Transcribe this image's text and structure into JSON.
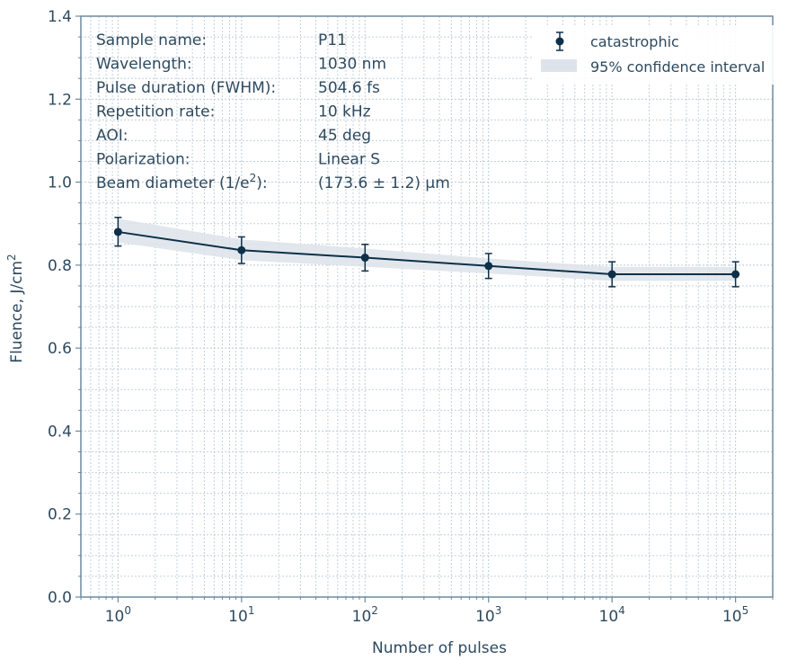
{
  "chart_data": {
    "type": "line",
    "xlabel": "Number of pulses",
    "ylabel": "Fluence, J/cm",
    "ylabel_sup": "2",
    "x_scale": "log",
    "xlim": [
      0.5,
      200000
    ],
    "ylim": [
      0.0,
      1.4
    ],
    "grid": true,
    "legend_position": "top-right",
    "y_ticks": [
      "0.0",
      "0.2",
      "0.4",
      "0.6",
      "0.8",
      "1.0",
      "1.2",
      "1.4"
    ],
    "x_ticks": [
      {
        "base": "10",
        "exp": "0"
      },
      {
        "base": "10",
        "exp": "1"
      },
      {
        "base": "10",
        "exp": "2"
      },
      {
        "base": "10",
        "exp": "3"
      },
      {
        "base": "10",
        "exp": "4"
      },
      {
        "base": "10",
        "exp": "5"
      }
    ],
    "series": [
      {
        "name": "catastrophic",
        "x": [
          1,
          10,
          100,
          1000,
          10000,
          100000
        ],
        "y": [
          0.88,
          0.836,
          0.818,
          0.798,
          0.778,
          0.778
        ],
        "err_low": [
          0.846,
          0.804,
          0.786,
          0.768,
          0.748,
          0.748
        ],
        "err_high": [
          0.915,
          0.868,
          0.85,
          0.828,
          0.808,
          0.808
        ],
        "color": "#0d3048"
      }
    ],
    "confidence_band": {
      "name": "95% confidence interval",
      "x": [
        1,
        10,
        100,
        1000,
        10000,
        100000
      ],
      "lower": [
        0.855,
        0.812,
        0.796,
        0.78,
        0.762,
        0.762
      ],
      "upper": [
        0.912,
        0.862,
        0.84,
        0.816,
        0.796,
        0.796
      ],
      "color": "#dde3ea"
    },
    "info_table": [
      {
        "label": "Sample name:",
        "value": "P11"
      },
      {
        "label": "Wavelength:",
        "value": "1030 nm"
      },
      {
        "label": "Pulse duration (FWHM):",
        "value": "504.6 fs"
      },
      {
        "label": "Repetition rate:",
        "value": "10 kHz"
      },
      {
        "label": "AOI:",
        "value": "45 deg"
      },
      {
        "label": "Polarization:",
        "value": "Linear S"
      },
      {
        "label": "Beam diameter (1/e",
        "label_sup": "2",
        "label_tail": "):",
        "value": "(173.6 ± 1.2) μm"
      }
    ]
  },
  "colors": {
    "axis": "#6d8aa0",
    "grid": "#c4d0da",
    "text": "#2d4a5f"
  }
}
